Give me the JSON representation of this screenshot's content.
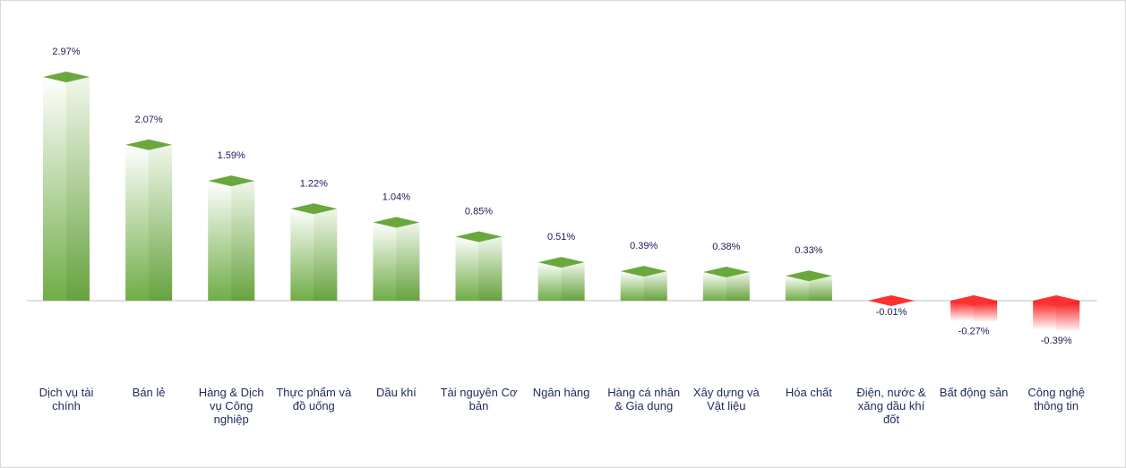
{
  "chart_data": {
    "type": "bar",
    "categories": [
      "Dịch vụ tài chính",
      "Bán lẻ",
      "Hàng & Dịch vụ Công nghiệp",
      "Thực phẩm và đồ uống",
      "Dầu khí",
      "Tài nguyên Cơ bản",
      "Ngân hàng",
      "Hàng cá nhân & Gia dụng",
      "Xây dựng và Vật liệu",
      "Hóa chất",
      "Điện, nước & xăng dầu khí đốt",
      "Bất động sản",
      "Công nghệ thông tin"
    ],
    "values": [
      2.97,
      2.07,
      1.59,
      1.22,
      1.04,
      0.85,
      0.51,
      0.39,
      0.38,
      0.33,
      -0.01,
      -0.27,
      -0.39
    ],
    "value_labels": [
      "2.97%",
      "2.07%",
      "1.59%",
      "1.22%",
      "1.04%",
      "0.85%",
      "0.51%",
      "0.39%",
      "0.38%",
      "0.33%",
      "-0.01%",
      "-0.27%",
      "-0.39%"
    ],
    "color": "#70ad47",
    "negative_color": "#ff1a1a"
  }
}
